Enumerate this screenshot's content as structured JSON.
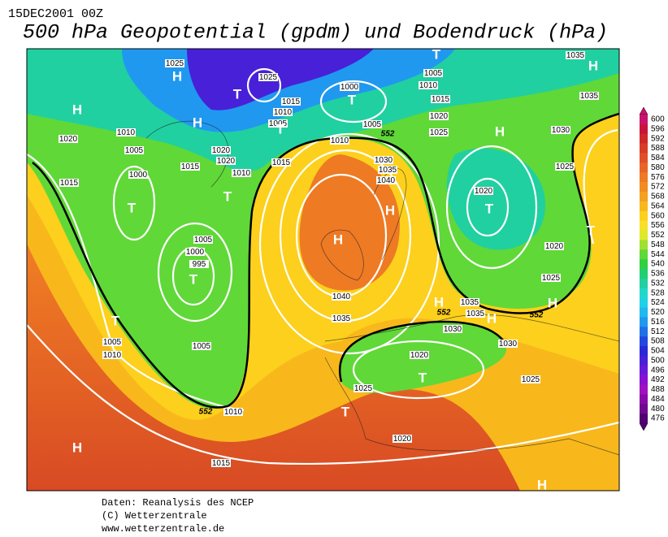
{
  "header": {
    "date": "15DEC2001 00Z",
    "title": "500 hPa Geopotential (gpdm) und Bodendruck (hPa)"
  },
  "isobar_labels": [
    1025,
    1025,
    1000,
    1005,
    1010,
    1015,
    1035,
    1035,
    1015,
    1010,
    1005,
    1005,
    1020,
    1025,
    1030,
    1010,
    1020,
    1005,
    1010,
    1020,
    1020,
    1015,
    1015,
    1010,
    1000,
    1030,
    1035,
    1040,
    1025,
    1015,
    1020,
    1005,
    1000,
    995,
    1020,
    1025,
    1040,
    1035,
    1035,
    1035,
    1030,
    1005,
    1010,
    1005,
    1030,
    1020,
    1025,
    1025,
    1010,
    1020,
    1015
  ],
  "contour_552_labels": [
    552,
    552,
    552,
    552
  ],
  "pressure_centers": [
    "H",
    "T",
    "T",
    "T",
    "H",
    "H",
    "H",
    "T",
    "H",
    "T",
    "T",
    "T",
    "H",
    "T",
    "H",
    "T",
    "H",
    "H",
    "H",
    "T",
    "T",
    "T",
    "H",
    "H"
  ],
  "colorbar": {
    "values": [
      600,
      596,
      592,
      588,
      584,
      580,
      576,
      572,
      568,
      564,
      560,
      556,
      552,
      548,
      544,
      540,
      536,
      532,
      528,
      524,
      520,
      516,
      512,
      508,
      504,
      500,
      496,
      492,
      488,
      484,
      480,
      476
    ],
    "colors": [
      "#c8146e",
      "#c8143c",
      "#d02828",
      "#d83c28",
      "#e05028",
      "#e86428",
      "#ee7a24",
      "#f08c20",
      "#f4a020",
      "#f8b81c",
      "#fcd01c",
      "#f8e028",
      "#e0e82c",
      "#a0e030",
      "#60d838",
      "#30d040",
      "#20d070",
      "#20d0a0",
      "#20d8c8",
      "#20d0e8",
      "#20b8f0",
      "#2098f0",
      "#2070e8",
      "#2048e0",
      "#2828d8",
      "#4820d8",
      "#6818d8",
      "#8810d0",
      "#a010c0",
      "#8808a8",
      "#700890",
      "#500070"
    ]
  },
  "footer": [
    "Daten: Reanalysis des NCEP",
    "(C) Wetterzentrale",
    "www.wetterzentrale.de"
  ]
}
